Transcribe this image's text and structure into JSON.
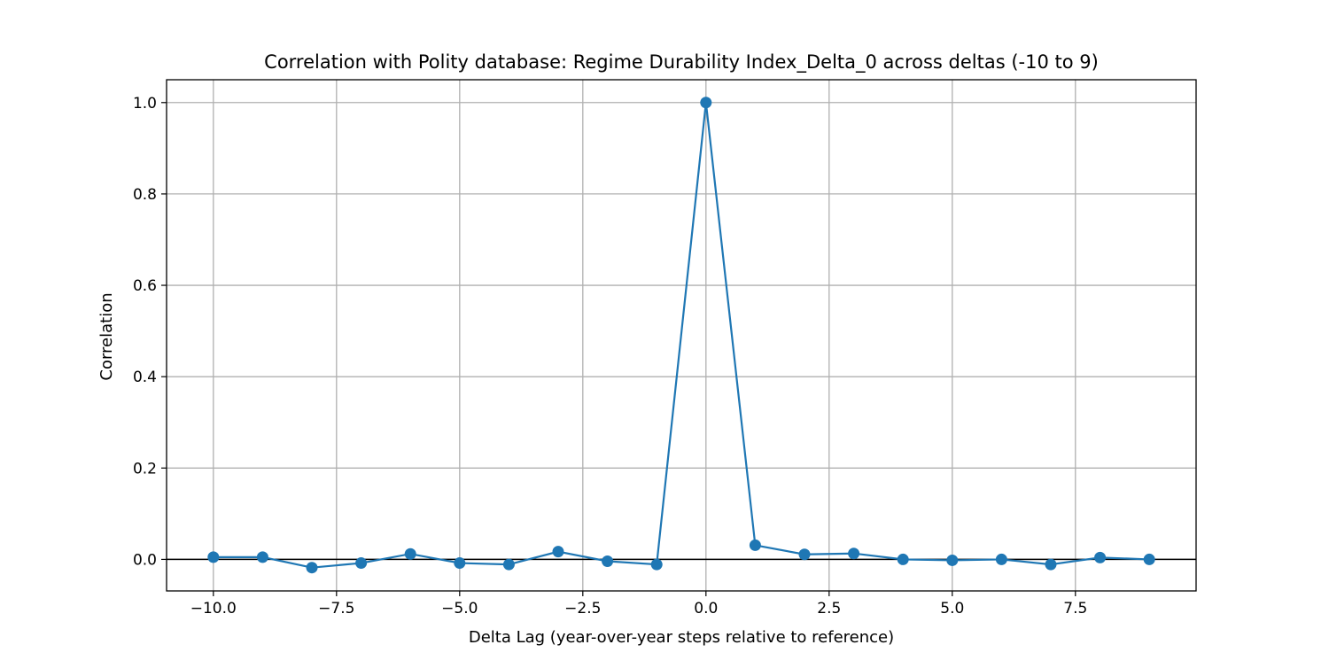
{
  "chart_data": {
    "type": "line",
    "title": "Correlation with Polity database: Regime Durability Index_Delta_0 across deltas (-10 to 9)",
    "xlabel": "Delta Lag (year-over-year steps relative to reference)",
    "ylabel": "Correlation",
    "xlim": [
      -10.95,
      9.95
    ],
    "ylim": [
      -0.069,
      1.05
    ],
    "xticks": [
      -10.0,
      -7.5,
      -5.0,
      -2.5,
      0.0,
      2.5,
      5.0,
      7.5
    ],
    "xtick_labels": [
      "−10.0",
      "−7.5",
      "−5.0",
      "−2.5",
      "0.0",
      "2.5",
      "5.0",
      "7.5"
    ],
    "yticks": [
      0.0,
      0.2,
      0.4,
      0.6,
      0.8,
      1.0
    ],
    "ytick_labels": [
      "0.0",
      "0.2",
      "0.4",
      "0.6",
      "0.8",
      "1.0"
    ],
    "grid": true,
    "reference_line_y": 0,
    "line_color": "#1f77b4",
    "marker": "circle",
    "series": [
      {
        "x": [
          -10,
          -9,
          -8,
          -7,
          -6,
          -5,
          -4,
          -3,
          -2,
          -1,
          0,
          1,
          2,
          3,
          4,
          5,
          6,
          7,
          8,
          9
        ],
        "y": [
          0.005,
          0.005,
          -0.018,
          -0.008,
          0.012,
          -0.008,
          -0.011,
          0.017,
          -0.004,
          -0.011,
          1.0,
          0.031,
          0.011,
          0.013,
          0.0,
          -0.002,
          0.0,
          -0.011,
          0.004,
          0.0
        ]
      }
    ]
  }
}
